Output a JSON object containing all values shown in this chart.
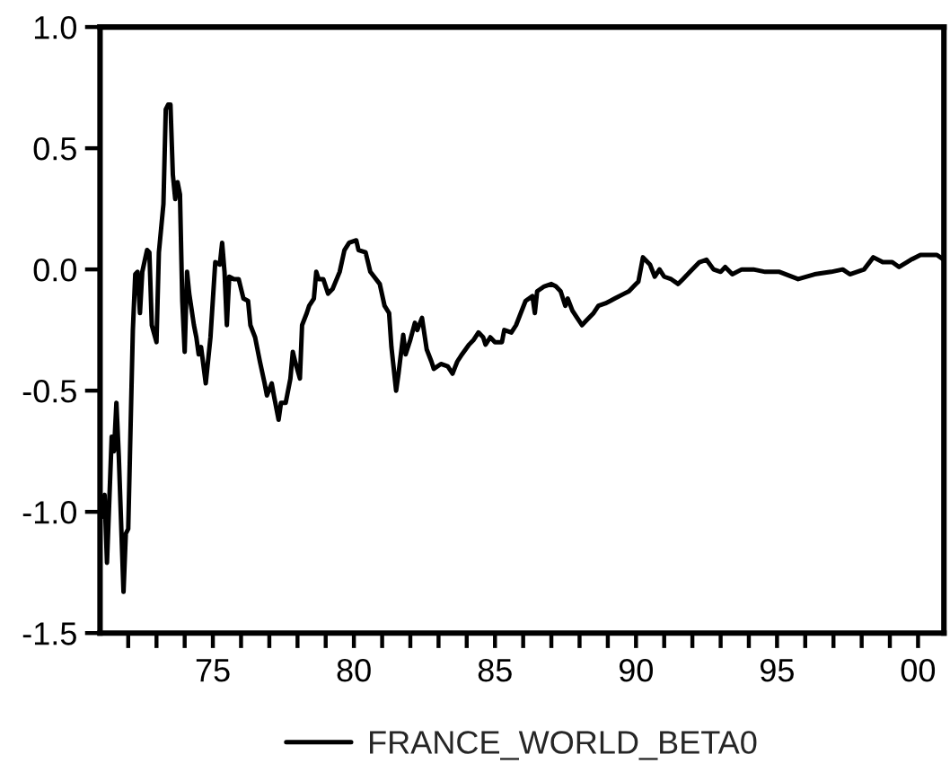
{
  "chart_data": {
    "type": "line",
    "x": [
      "1971-01",
      "1971-02",
      "1971-03",
      "1971-04",
      "1971-06",
      "1971-07",
      "1971-08",
      "1971-09",
      "1971-11",
      "1971-12",
      "1972-01",
      "1972-03",
      "1972-04",
      "1972-05",
      "1972-06",
      "1972-07",
      "1972-09",
      "1972-10",
      "1972-11",
      "1973-01",
      "1973-02",
      "1973-04",
      "1973-05",
      "1973-06",
      "1973-07",
      "1973-08",
      "1973-09",
      "1973-10",
      "1973-11",
      "1973-12",
      "1974-01",
      "1974-02",
      "1974-03",
      "1974-05",
      "1974-06",
      "1974-07",
      "1974-08",
      "1974-10",
      "1974-12",
      "1975-02",
      "1975-04",
      "1975-05",
      "1975-06",
      "1975-07",
      "1975-08",
      "1975-10",
      "1975-12",
      "1976-02",
      "1976-04",
      "1976-05",
      "1976-07",
      "1976-09",
      "1976-11",
      "1976-12",
      "1977-02",
      "1977-03",
      "1977-05",
      "1977-06",
      "1977-08",
      "1977-10",
      "1977-11",
      "1977-12",
      "1978-02",
      "1978-03",
      "1978-05",
      "1978-06",
      "1978-08",
      "1978-09",
      "1978-10",
      "1978-12",
      "1979-02",
      "1979-04",
      "1979-07",
      "1979-09",
      "1979-11",
      "1980-02",
      "1980-03",
      "1980-06",
      "1980-08",
      "1980-12",
      "1981-02",
      "1981-04",
      "1981-05",
      "1981-07",
      "1981-08",
      "1981-10",
      "1981-11",
      "1982-01",
      "1982-03",
      "1982-04",
      "1982-06",
      "1982-08",
      "1982-10",
      "1982-11",
      "1983-02",
      "1983-05",
      "1983-07",
      "1983-09",
      "1983-11",
      "1984-02",
      "1984-04",
      "1984-06",
      "1984-08",
      "1984-09",
      "1984-11",
      "1985-01",
      "1985-04",
      "1985-05",
      "1985-08",
      "1985-10",
      "1985-12",
      "1986-02",
      "1986-05",
      "1986-06",
      "1986-07",
      "1986-10",
      "1987-01",
      "1987-03",
      "1987-05",
      "1987-07",
      "1987-08",
      "1987-10",
      "1987-12",
      "1988-02",
      "1988-04",
      "1988-07",
      "1988-09",
      "1988-12",
      "1989-02",
      "1989-04",
      "1989-08",
      "1989-10",
      "1990-01",
      "1990-02",
      "1990-04",
      "1990-07",
      "1990-09",
      "1990-11",
      "1991-01",
      "1991-04",
      "1991-07",
      "1991-09",
      "1991-12",
      "1992-04",
      "1992-07",
      "1992-10",
      "1993-01",
      "1993-03",
      "1993-06",
      "1993-10",
      "1994-03",
      "1994-08",
      "1995-02",
      "1995-10",
      "1996-05",
      "1996-12",
      "1997-05",
      "1997-08",
      "1998-02",
      "1998-06",
      "1998-10",
      "1999-02",
      "1999-05",
      "1999-10",
      "2000-02",
      "2000-06",
      "2000-09",
      "2000-12"
    ],
    "series": [
      {
        "name": "FRANCE_WORLD_BETA0",
        "color": "#000000",
        "values": [
          -0.95,
          -1.02,
          -0.93,
          -1.21,
          -0.69,
          -0.75,
          -0.55,
          -0.77,
          -1.33,
          -1.09,
          -1.07,
          -0.25,
          -0.02,
          -0.01,
          -0.18,
          -0.01,
          0.08,
          0.07,
          -0.23,
          -0.3,
          0.07,
          0.27,
          0.66,
          0.68,
          0.68,
          0.39,
          0.29,
          0.36,
          0.31,
          -0.13,
          -0.34,
          -0.01,
          -0.1,
          -0.23,
          -0.28,
          -0.35,
          -0.32,
          -0.47,
          -0.28,
          0.03,
          0.02,
          0.11,
          -0.01,
          -0.23,
          -0.03,
          -0.04,
          -0.04,
          -0.12,
          -0.13,
          -0.23,
          -0.28,
          -0.38,
          -0.47,
          -0.52,
          -0.47,
          -0.52,
          -0.62,
          -0.55,
          -0.55,
          -0.45,
          -0.34,
          -0.38,
          -0.45,
          -0.23,
          -0.18,
          -0.15,
          -0.12,
          -0.01,
          -0.04,
          -0.04,
          -0.1,
          -0.08,
          -0.01,
          0.08,
          0.11,
          0.12,
          0.08,
          0.07,
          -0.01,
          -0.06,
          -0.15,
          -0.18,
          -0.32,
          -0.5,
          -0.43,
          -0.27,
          -0.35,
          -0.29,
          -0.22,
          -0.25,
          -0.2,
          -0.33,
          -0.38,
          -0.41,
          -0.39,
          -0.4,
          -0.43,
          -0.38,
          -0.35,
          -0.31,
          -0.29,
          -0.26,
          -0.28,
          -0.31,
          -0.28,
          -0.3,
          -0.3,
          -0.25,
          -0.26,
          -0.23,
          -0.18,
          -0.13,
          -0.11,
          -0.18,
          -0.09,
          -0.07,
          -0.06,
          -0.07,
          -0.09,
          -0.15,
          -0.12,
          -0.17,
          -0.2,
          -0.23,
          -0.21,
          -0.18,
          -0.15,
          -0.14,
          -0.13,
          -0.12,
          -0.1,
          -0.09,
          -0.06,
          -0.05,
          0.05,
          0.02,
          -0.03,
          0.0,
          -0.03,
          -0.04,
          -0.06,
          -0.04,
          -0.01,
          0.03,
          0.04,
          0.0,
          -0.01,
          0.01,
          -0.02,
          0.0,
          0.0,
          -0.01,
          -0.01,
          -0.04,
          -0.02,
          -0.01,
          0.0,
          -0.02,
          0.0,
          0.05,
          0.03,
          0.03,
          0.01,
          0.04,
          0.06,
          0.06,
          0.06,
          0.04
        ]
      }
    ],
    "xlim": [
      "1971-01",
      "2000-12"
    ],
    "xticks": [
      {
        "value": "1972",
        "label": null
      },
      {
        "value": "1973",
        "label": null
      },
      {
        "value": "1974",
        "label": null
      },
      {
        "value": "1975",
        "label": "75"
      },
      {
        "value": "1976",
        "label": null
      },
      {
        "value": "1977",
        "label": null
      },
      {
        "value": "1978",
        "label": null
      },
      {
        "value": "1979",
        "label": null
      },
      {
        "value": "1980",
        "label": "80"
      },
      {
        "value": "1981",
        "label": null
      },
      {
        "value": "1982",
        "label": null
      },
      {
        "value": "1983",
        "label": null
      },
      {
        "value": "1984",
        "label": null
      },
      {
        "value": "1985",
        "label": "85"
      },
      {
        "value": "1986",
        "label": null
      },
      {
        "value": "1987",
        "label": null
      },
      {
        "value": "1988",
        "label": null
      },
      {
        "value": "1989",
        "label": null
      },
      {
        "value": "1990",
        "label": "90"
      },
      {
        "value": "1991",
        "label": null
      },
      {
        "value": "1992",
        "label": null
      },
      {
        "value": "1993",
        "label": null
      },
      {
        "value": "1994",
        "label": null
      },
      {
        "value": "1995",
        "label": "95"
      },
      {
        "value": "1996",
        "label": null
      },
      {
        "value": "1997",
        "label": null
      },
      {
        "value": "1998",
        "label": null
      },
      {
        "value": "1999",
        "label": null
      },
      {
        "value": "2000",
        "label": "00"
      }
    ],
    "ylim": [
      -1.5,
      1.0
    ],
    "yticks": [
      -1.5,
      {
        "value": -1.0,
        "label": "-1.0"
      },
      -0.5,
      {
        "value": 0.0,
        "label": "0.0"
      },
      0.5,
      {
        "value": 1.0,
        "label": "1.0"
      }
    ],
    "legend": "bottom"
  }
}
